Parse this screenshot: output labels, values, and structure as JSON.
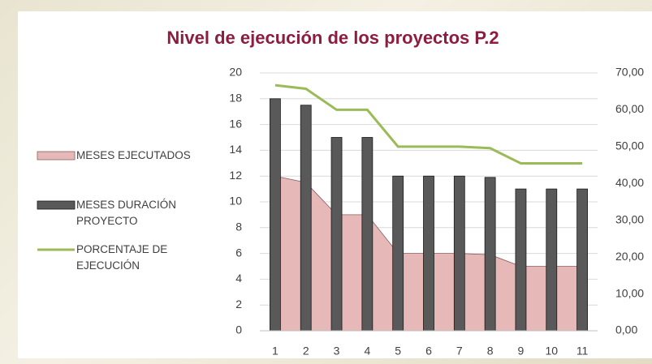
{
  "chart_data": {
    "type": "combo",
    "title": "Nivel de ejecución de los proyectos P.2",
    "categories": [
      "1",
      "2",
      "3",
      "4",
      "5",
      "6",
      "7",
      "8",
      "9",
      "10",
      "11"
    ],
    "series": [
      {
        "name": "MESES EJECUTADOS",
        "type": "area",
        "color": "#e6b9b8",
        "values": [
          12,
          11.5,
          9,
          9,
          6,
          6,
          6,
          5.9,
          5,
          5,
          5
        ]
      },
      {
        "name": "MESES DURACIÓN PROYECTO",
        "type": "bar",
        "color": "#595959",
        "values": [
          18,
          17.5,
          15,
          15,
          12,
          12,
          12,
          11.9,
          11,
          11,
          11
        ]
      },
      {
        "name": "PORCENTAJE DE EJECUCIÓN",
        "type": "line",
        "color": "#9bbb59",
        "axis": "y2",
        "values": [
          66.67,
          65.71,
          60,
          60,
          50,
          50,
          50,
          49.58,
          45.45,
          45.45,
          45.45
        ]
      }
    ],
    "ylim": [
      0,
      20
    ],
    "yticks": [
      0,
      2,
      4,
      6,
      8,
      10,
      12,
      14,
      16,
      18,
      20
    ],
    "y2lim": [
      0,
      70
    ],
    "y2ticks": [
      {
        "value": 0,
        "label": "0,00"
      },
      {
        "value": 10,
        "label": "10,00"
      },
      {
        "value": 20,
        "label": "20,00"
      },
      {
        "value": 30,
        "label": "30,00"
      },
      {
        "value": 40,
        "label": "40,00"
      },
      {
        "value": 50,
        "label": "50,00"
      },
      {
        "value": 60,
        "label": "60,00"
      },
      {
        "value": 70,
        "label": "70,00"
      }
    ],
    "grid": true,
    "legend": "left"
  }
}
